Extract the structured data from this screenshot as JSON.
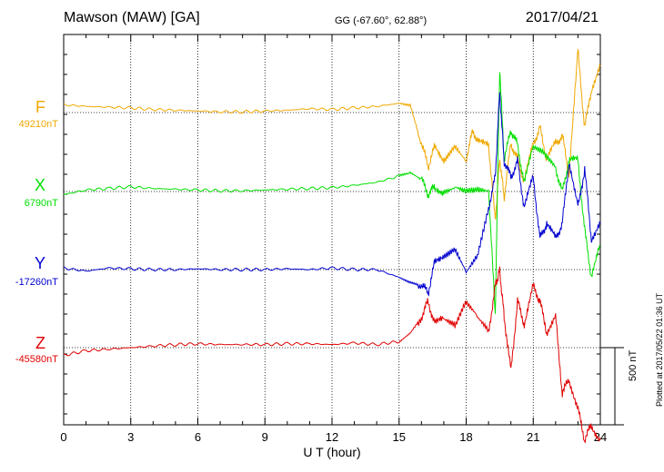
{
  "header": {
    "site": "Mawson (MAW)  [GA]",
    "coords": "GG (-67.60°,  62.88°)",
    "date": "2017/04/21"
  },
  "footer": {
    "plotted": "Plotted at 2017/05/22 01:36 UT"
  },
  "scale_bar": {
    "label": "500 nT",
    "value_nT": 500
  },
  "colors": {
    "F": "#f0a800",
    "X": "#00e000",
    "Y": "#0000d0",
    "Z": "#e00000",
    "grid": "#000000"
  },
  "chart_data": {
    "type": "line",
    "title": "Mawson (MAW)  [GA]",
    "xlabel": "U T (hour)",
    "ylabel": "",
    "xlim": [
      0,
      24
    ],
    "xticks": [
      "0",
      "3",
      "6",
      "9",
      "12",
      "15",
      "18",
      "21",
      "24"
    ],
    "grid": true,
    "legend": "left",
    "series": [
      {
        "name": "F",
        "baseline_label": "49210nT",
        "x": [
          0,
          1,
          2,
          3,
          4,
          5,
          6,
          7,
          8,
          9,
          10,
          11,
          12,
          13,
          14,
          15,
          15.5,
          16,
          16.3,
          16.6,
          17,
          17.5,
          18,
          18.3,
          18.6,
          19,
          19.3,
          19.5,
          19.7,
          20,
          20.3,
          20.6,
          21,
          21.3,
          21.6,
          22,
          22.3,
          22.6,
          23,
          23.3,
          23.6,
          24
        ],
        "y": [
          50,
          40,
          35,
          30,
          20,
          15,
          10,
          5,
          5,
          10,
          15,
          25,
          20,
          30,
          40,
          60,
          50,
          -200,
          -350,
          -220,
          -300,
          -200,
          -300,
          -120,
          -200,
          -200,
          -700,
          -300,
          -550,
          -200,
          -300,
          -450,
          -200,
          -100,
          -300,
          -200,
          -150,
          -400,
          400,
          -100,
          150,
          300
        ]
      },
      {
        "name": "X",
        "baseline_label": "6790nT",
        "x": [
          0,
          1,
          2,
          3,
          4,
          5,
          6,
          7,
          8,
          9,
          10,
          11,
          12,
          13,
          14,
          15,
          15.5,
          16,
          16.3,
          16.6,
          17,
          17.5,
          18,
          18.5,
          19,
          19.3,
          19.5,
          19.7,
          20,
          20.3,
          20.6,
          21,
          21.5,
          22,
          22.3,
          22.6,
          23,
          23.3,
          23.6,
          24
        ],
        "y": [
          -20,
          10,
          20,
          30,
          20,
          15,
          10,
          5,
          5,
          10,
          15,
          20,
          25,
          40,
          60,
          100,
          120,
          80,
          -20,
          30,
          0,
          40,
          20,
          30,
          20,
          -800,
          800,
          200,
          400,
          300,
          50,
          300,
          250,
          150,
          0,
          200,
          200,
          -250,
          -550,
          -350
        ]
      },
      {
        "name": "Y",
        "baseline_label": "-17260nT",
        "x": [
          0,
          1,
          2,
          3,
          4,
          5,
          6,
          7,
          8,
          9,
          10,
          11,
          12,
          13,
          14,
          15,
          15.5,
          16,
          16.3,
          16.6,
          17,
          17.5,
          18,
          18.5,
          19,
          19.3,
          19.5,
          19.7,
          20,
          20.3,
          20.6,
          21,
          21.3,
          21.6,
          22,
          22.3,
          22.6,
          23,
          23.3,
          23.6,
          24
        ],
        "y": [
          10,
          -10,
          10,
          5,
          0,
          0,
          5,
          0,
          0,
          0,
          5,
          0,
          10,
          0,
          0,
          -50,
          -80,
          -100,
          -150,
          50,
          100,
          150,
          0,
          100,
          400,
          600,
          1150,
          700,
          600,
          700,
          400,
          600,
          200,
          300,
          200,
          300,
          700,
          400,
          650,
          200,
          300
        ]
      },
      {
        "name": "Z",
        "baseline_label": "-45580nT",
        "x": [
          0,
          1,
          2,
          3,
          4,
          5,
          6,
          7,
          8,
          9,
          10,
          11,
          12,
          13,
          14,
          15,
          15.5,
          16,
          16.3,
          16.6,
          17,
          17.5,
          18,
          18.5,
          19,
          19.3,
          19.5,
          19.7,
          20,
          20.3,
          20.6,
          21,
          21.3,
          21.6,
          22,
          22.3,
          22.6,
          23,
          23.3,
          23.6,
          24
        ],
        "y": [
          -50,
          -20,
          -10,
          0,
          10,
          20,
          25,
          20,
          20,
          20,
          25,
          25,
          20,
          30,
          20,
          40,
          100,
          200,
          300,
          150,
          200,
          150,
          300,
          200,
          100,
          400,
          500,
          200,
          -150,
          300,
          150,
          400,
          300,
          100,
          200,
          -300,
          -200,
          -400,
          -600,
          -500,
          -600
        ]
      }
    ]
  }
}
